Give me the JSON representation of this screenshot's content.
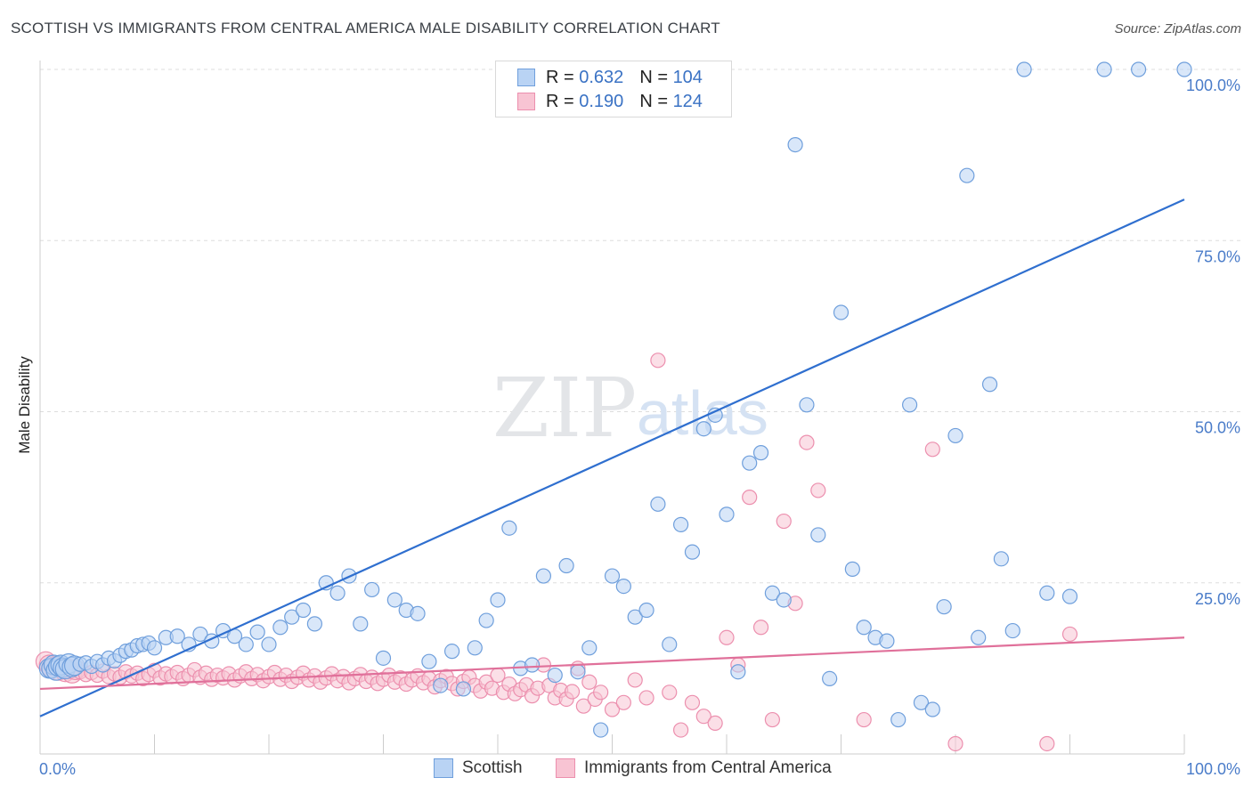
{
  "header": {
    "title": "SCOTTISH VS IMMIGRANTS FROM CENTRAL AMERICA MALE DISABILITY CORRELATION CHART",
    "source": "Source: ZipAtlas.com"
  },
  "watermark": {
    "zip": "ZIP",
    "atlas": "atlas"
  },
  "legend": {
    "rows": [
      {
        "r_label": "R =",
        "r_value": "0.632",
        "n_label": "N =",
        "n_value": "104"
      },
      {
        "r_label": "R =",
        "r_value": "0.190",
        "n_label": "N =",
        "n_value": "124"
      }
    ]
  },
  "bottom_legend": {
    "scottish": "Scottish",
    "immigrants": "Immigrants from Central America"
  },
  "colors": {
    "blue_fill": "#b9d3f4",
    "blue_stroke": "#6f9fdc",
    "blue_line": "#2f6fcf",
    "pink_fill": "#f8c4d3",
    "pink_stroke": "#ec8fae",
    "pink_line": "#e0709a",
    "grid": "#dddddd",
    "axis": "#cccccc",
    "tick_text": "#4a7cc9"
  },
  "chart_data": {
    "type": "scatter",
    "title": "SCOTTISH VS IMMIGRANTS FROM CENTRAL AMERICA MALE DISABILITY CORRELATION CHART",
    "ylabel": "Male Disability",
    "xlabel": "",
    "xlim": [
      0,
      100
    ],
    "ylim": [
      0,
      100
    ],
    "x_tick_labels": [
      "0.0%",
      "100.0%"
    ],
    "y_tick_values": [
      25,
      50,
      75,
      100
    ],
    "y_tick_labels": [
      "25.0%",
      "50.0%",
      "75.0%",
      "100.0%"
    ],
    "grid": "horizontal dashed",
    "legend_position": "top-center",
    "series": [
      {
        "name": "Scottish",
        "r": 0.632,
        "n": 104,
        "trend": {
          "x": [
            0,
            100
          ],
          "y": [
            5.5,
            81
          ]
        },
        "points": [
          [
            0.8,
            12.5
          ],
          [
            1.0,
            12.5
          ],
          [
            1.2,
            13.0
          ],
          [
            1.4,
            12.2
          ],
          [
            1.6,
            12.8
          ],
          [
            1.8,
            13.0
          ],
          [
            2.0,
            12.6
          ],
          [
            2.2,
            12.4
          ],
          [
            2.5,
            13.2
          ],
          [
            2.8,
            12.7
          ],
          [
            3.0,
            12.9
          ],
          [
            3.5,
            13.1
          ],
          [
            4.0,
            13.3
          ],
          [
            4.5,
            12.8
          ],
          [
            5.0,
            13.5
          ],
          [
            5.5,
            13.0
          ],
          [
            6.0,
            14.0
          ],
          [
            6.5,
            13.6
          ],
          [
            7.0,
            14.4
          ],
          [
            7.5,
            15.0
          ],
          [
            8.0,
            15.2
          ],
          [
            8.5,
            15.8
          ],
          [
            9.0,
            16.0
          ],
          [
            9.5,
            16.2
          ],
          [
            10.0,
            15.5
          ],
          [
            11.0,
            17.0
          ],
          [
            12.0,
            17.2
          ],
          [
            13.0,
            16.0
          ],
          [
            14.0,
            17.5
          ],
          [
            15.0,
            16.5
          ],
          [
            16.0,
            18.0
          ],
          [
            17.0,
            17.2
          ],
          [
            18.0,
            16.0
          ],
          [
            19.0,
            17.8
          ],
          [
            20.0,
            16.0
          ],
          [
            21.0,
            18.5
          ],
          [
            22.0,
            20.0
          ],
          [
            23.0,
            21.0
          ],
          [
            24.0,
            19.0
          ],
          [
            25.0,
            25.0
          ],
          [
            26.0,
            23.5
          ],
          [
            27.0,
            26.0
          ],
          [
            28.0,
            19.0
          ],
          [
            29.0,
            24.0
          ],
          [
            30.0,
            14.0
          ],
          [
            31.0,
            22.5
          ],
          [
            32.0,
            21.0
          ],
          [
            33.0,
            20.5
          ],
          [
            34.0,
            13.5
          ],
          [
            35.0,
            10.0
          ],
          [
            36.0,
            15.0
          ],
          [
            37.0,
            9.5
          ],
          [
            38.0,
            15.5
          ],
          [
            39.0,
            19.5
          ],
          [
            40.0,
            22.5
          ],
          [
            41.0,
            33.0
          ],
          [
            42.0,
            12.5
          ],
          [
            43.0,
            13.0
          ],
          [
            44.0,
            26.0
          ],
          [
            45.0,
            11.5
          ],
          [
            46.0,
            27.5
          ],
          [
            47.0,
            12.0
          ],
          [
            48.0,
            15.5
          ],
          [
            49.0,
            3.5
          ],
          [
            50.0,
            26.0
          ],
          [
            51.0,
            24.5
          ],
          [
            52.0,
            20.0
          ],
          [
            53.0,
            21.0
          ],
          [
            54.0,
            36.5
          ],
          [
            55.0,
            16.0
          ],
          [
            56.0,
            33.5
          ],
          [
            57.0,
            29.5
          ],
          [
            58.0,
            47.5
          ],
          [
            59.0,
            49.5
          ],
          [
            60.0,
            35.0
          ],
          [
            61.0,
            12.0
          ],
          [
            62.0,
            42.5
          ],
          [
            63.0,
            44.0
          ],
          [
            64.0,
            23.5
          ],
          [
            65.0,
            22.5
          ],
          [
            66.0,
            89.0
          ],
          [
            67.0,
            51.0
          ],
          [
            68.0,
            32.0
          ],
          [
            69.0,
            11.0
          ],
          [
            70.0,
            64.5
          ],
          [
            71.0,
            27.0
          ],
          [
            72.0,
            18.5
          ],
          [
            73.0,
            17.0
          ],
          [
            74.0,
            16.5
          ],
          [
            75.0,
            5.0
          ],
          [
            76.0,
            51.0
          ],
          [
            77.0,
            7.5
          ],
          [
            78.0,
            6.5
          ],
          [
            79.0,
            21.5
          ],
          [
            80.0,
            46.5
          ],
          [
            81.0,
            84.5
          ],
          [
            82.0,
            17.0
          ],
          [
            83.0,
            54.0
          ],
          [
            84.0,
            28.5
          ],
          [
            85.0,
            18.0
          ],
          [
            86.0,
            100.0
          ],
          [
            88.0,
            23.5
          ],
          [
            90.0,
            23.0
          ],
          [
            93.0,
            100.0
          ],
          [
            96.0,
            100.0
          ],
          [
            100.0,
            100.0
          ]
        ]
      },
      {
        "name": "Immigrants from Central America",
        "r": 0.19,
        "n": 124,
        "trend": {
          "x": [
            0,
            100
          ],
          "y": [
            9.5,
            17.0
          ]
        },
        "points": [
          [
            0.5,
            13.5
          ],
          [
            0.8,
            13.0
          ],
          [
            1.0,
            12.5
          ],
          [
            1.3,
            12.8
          ],
          [
            1.6,
            12.2
          ],
          [
            1.9,
            12.6
          ],
          [
            2.2,
            12.0
          ],
          [
            2.5,
            12.4
          ],
          [
            2.8,
            11.8
          ],
          [
            3.1,
            12.3
          ],
          [
            3.5,
            12.0
          ],
          [
            4.0,
            11.6
          ],
          [
            4.5,
            11.9
          ],
          [
            5.0,
            11.5
          ],
          [
            5.5,
            12.1
          ],
          [
            6.0,
            11.3
          ],
          [
            6.5,
            11.7
          ],
          [
            7.0,
            11.2
          ],
          [
            7.5,
            12.0
          ],
          [
            8.0,
            11.4
          ],
          [
            8.5,
            11.8
          ],
          [
            9.0,
            11.0
          ],
          [
            9.5,
            11.6
          ],
          [
            10.0,
            12.2
          ],
          [
            10.5,
            11.1
          ],
          [
            11.0,
            11.7
          ],
          [
            11.5,
            11.3
          ],
          [
            12.0,
            11.9
          ],
          [
            12.5,
            11.0
          ],
          [
            13.0,
            11.5
          ],
          [
            13.5,
            12.3
          ],
          [
            14.0,
            11.2
          ],
          [
            14.5,
            11.8
          ],
          [
            15.0,
            10.9
          ],
          [
            15.5,
            11.5
          ],
          [
            16.0,
            11.1
          ],
          [
            16.5,
            11.7
          ],
          [
            17.0,
            10.8
          ],
          [
            17.5,
            11.4
          ],
          [
            18.0,
            12.0
          ],
          [
            18.5,
            11.0
          ],
          [
            19.0,
            11.6
          ],
          [
            19.5,
            10.7
          ],
          [
            20.0,
            11.3
          ],
          [
            20.5,
            11.9
          ],
          [
            21.0,
            10.9
          ],
          [
            21.5,
            11.5
          ],
          [
            22.0,
            10.6
          ],
          [
            22.5,
            11.2
          ],
          [
            23.0,
            11.8
          ],
          [
            23.5,
            10.8
          ],
          [
            24.0,
            11.4
          ],
          [
            24.5,
            10.5
          ],
          [
            25.0,
            11.1
          ],
          [
            25.5,
            11.7
          ],
          [
            26.0,
            10.7
          ],
          [
            26.5,
            11.3
          ],
          [
            27.0,
            10.4
          ],
          [
            27.5,
            11.0
          ],
          [
            28.0,
            11.6
          ],
          [
            28.5,
            10.6
          ],
          [
            29.0,
            11.2
          ],
          [
            29.5,
            10.3
          ],
          [
            30.0,
            10.9
          ],
          [
            30.5,
            11.5
          ],
          [
            31.0,
            10.5
          ],
          [
            31.5,
            11.1
          ],
          [
            32.0,
            10.2
          ],
          [
            32.5,
            10.8
          ],
          [
            33.0,
            11.4
          ],
          [
            33.5,
            10.4
          ],
          [
            34.0,
            11.0
          ],
          [
            34.5,
            9.8
          ],
          [
            35.0,
            10.7
          ],
          [
            35.5,
            11.3
          ],
          [
            36.0,
            10.3
          ],
          [
            36.5,
            9.5
          ],
          [
            37.0,
            10.6
          ],
          [
            37.5,
            11.2
          ],
          [
            38.0,
            10.0
          ],
          [
            38.5,
            9.2
          ],
          [
            39.0,
            10.5
          ],
          [
            39.5,
            9.6
          ],
          [
            40.0,
            11.5
          ],
          [
            40.5,
            9.0
          ],
          [
            41.0,
            10.2
          ],
          [
            41.5,
            8.8
          ],
          [
            42.0,
            9.4
          ],
          [
            42.5,
            10.1
          ],
          [
            43.0,
            8.5
          ],
          [
            43.5,
            9.6
          ],
          [
            44.0,
            13.0
          ],
          [
            44.5,
            10.0
          ],
          [
            45.0,
            8.2
          ],
          [
            45.5,
            9.3
          ],
          [
            46.0,
            8.0
          ],
          [
            46.5,
            9.1
          ],
          [
            47.0,
            12.5
          ],
          [
            47.5,
            7.0
          ],
          [
            48.0,
            10.5
          ],
          [
            48.5,
            8.0
          ],
          [
            49.0,
            9.0
          ],
          [
            50.0,
            6.5
          ],
          [
            51.0,
            7.5
          ],
          [
            52.0,
            10.8
          ],
          [
            53.0,
            8.2
          ],
          [
            54.0,
            57.5
          ],
          [
            55.0,
            9.0
          ],
          [
            56.0,
            3.5
          ],
          [
            57.0,
            7.5
          ],
          [
            58.0,
            5.5
          ],
          [
            59.0,
            4.5
          ],
          [
            60.0,
            17.0
          ],
          [
            61.0,
            13.0
          ],
          [
            62.0,
            37.5
          ],
          [
            63.0,
            18.5
          ],
          [
            64.0,
            5.0
          ],
          [
            65.0,
            34.0
          ],
          [
            66.0,
            22.0
          ],
          [
            67.0,
            45.5
          ],
          [
            68.0,
            38.5
          ],
          [
            72.0,
            5.0
          ],
          [
            78.0,
            44.5
          ],
          [
            80.0,
            1.5
          ],
          [
            88.0,
            1.5
          ],
          [
            90.0,
            17.5
          ]
        ]
      }
    ]
  }
}
